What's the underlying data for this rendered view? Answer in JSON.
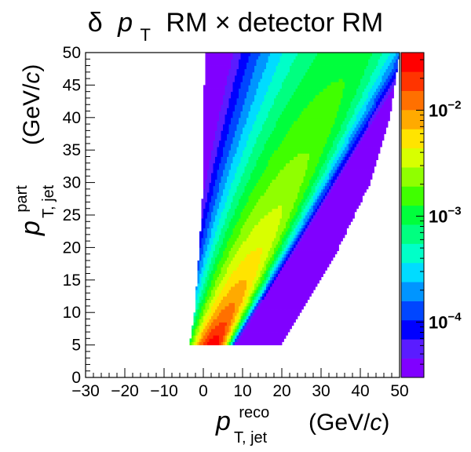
{
  "chart_data": {
    "type": "heatmap",
    "title_parts": {
      "delta": "δ",
      "p": "p",
      "sub": "T",
      "rest": "RM × detector RM"
    },
    "xlabel_parts": {
      "p": "p",
      "sup": "reco",
      "sub": "T, jet",
      "unit_pre": "(GeV/",
      "unit_c": "c",
      "unit_post": ")"
    },
    "ylabel_parts": {
      "p": "p",
      "sup": "part",
      "sub": "T, jet",
      "unit_pre": "(GeV/",
      "unit_c": "c",
      "unit_post": ")"
    },
    "xlim": [
      -30,
      50
    ],
    "ylim": [
      0,
      50
    ],
    "x_ticks": [
      "−30",
      "−20",
      "−10",
      "0",
      "10",
      "20",
      "30",
      "40",
      "50"
    ],
    "x_tick_values": [
      -30,
      -20,
      -10,
      0,
      10,
      20,
      30,
      40,
      50
    ],
    "y_ticks": [
      "0",
      "5",
      "10",
      "15",
      "20",
      "25",
      "30",
      "35",
      "40",
      "45",
      "50"
    ],
    "y_tick_values": [
      0,
      5,
      10,
      15,
      20,
      25,
      30,
      35,
      40,
      45,
      50
    ],
    "z_scale": "log",
    "z_range": [
      3e-05,
      0.035
    ],
    "colorbar_labels": [
      {
        "base": "10",
        "exp": "−2",
        "value": 0.01
      },
      {
        "base": "10",
        "exp": "−3",
        "value": 0.001
      },
      {
        "base": "10",
        "exp": "−4",
        "value": 0.0001
      }
    ],
    "data_region": {
      "y_range": [
        5,
        50
      ],
      "left_edge": [
        [
          5,
          -3.5
        ],
        [
          10,
          -2.2
        ],
        [
          20,
          -1.0
        ],
        [
          30,
          0.0
        ],
        [
          40,
          0.2
        ],
        [
          50,
          0.3
        ]
      ],
      "right_edge": [
        [
          5,
          19.5
        ],
        [
          10,
          24.5
        ],
        [
          20,
          34.5
        ],
        [
          30,
          42.5
        ],
        [
          40,
          47.5
        ],
        [
          50,
          50
        ]
      ]
    },
    "palette": [
      "#8000ff",
      "#5a1cff",
      "#0000ff",
      "#0046ff",
      "#0095ff",
      "#00dcff",
      "#00ffc8",
      "#00ff80",
      "#00ff3c",
      "#40ff00",
      "#90ff00",
      "#d8ff00",
      "#ffe400",
      "#ffaa00",
      "#ff7000",
      "#ff3400",
      "#ff0000"
    ],
    "grid": false,
    "legend": "colorbar-right"
  }
}
